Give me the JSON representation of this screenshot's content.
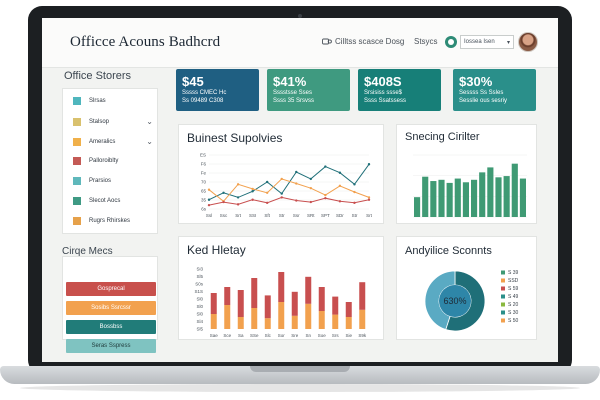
{
  "header": {
    "title": "Officce Acouns Badhcrd",
    "search_label": "Cilltss scasce Dosg",
    "status_label": "Stsycs",
    "dropdown_value": "Iossea Isen"
  },
  "sidebar": {
    "title": "Office Storers",
    "items": [
      {
        "label": "Slrsas",
        "color": "#4fb6bd",
        "chevron": false
      },
      {
        "label": "Stalsop",
        "color": "#d9c16e",
        "chevron": true
      },
      {
        "label": "Ameralics",
        "color": "#f0b04a",
        "chevron": true
      },
      {
        "label": "Palloroiblty",
        "color": "#c45a55",
        "chevron": false
      },
      {
        "label": "Prarsios",
        "color": "#5fb8bb",
        "chevron": false
      },
      {
        "label": "Slecot Aocs",
        "color": "#3f9a84",
        "chevron": false
      },
      {
        "label": "Rugrs Rhirskes",
        "color": "#e6a14a",
        "chevron": false
      }
    ]
  },
  "group": {
    "title": "Cirqe Mecs",
    "buttons": [
      {
        "label": "Gosprecal",
        "bg": "#c8504c",
        "fg": "#ffffff"
      },
      {
        "label": "Sosibs Ssrcssr",
        "bg": "#f2a14e",
        "fg": "#ffffff"
      },
      {
        "label": "Bossbss",
        "bg": "#217c79",
        "fg": "#ffffff"
      },
      {
        "label": "Seras Sspress",
        "bg": "#7fc3c1",
        "fg": "#1f3a3a"
      }
    ]
  },
  "kpis": [
    {
      "value": "$45",
      "sub1": "Sssss CMEC Hc",
      "sub2": "Ss 09489 C308",
      "color": "#1f5f82"
    },
    {
      "value": "$41%",
      "sub1": "Sssstsse Sses",
      "sub2": "Ssss 35 Srsvss",
      "color": "#3f9a80"
    },
    {
      "value": "$408S",
      "sub1": "Srsisiss ssse$",
      "sub2": "Ssss Ssatssess",
      "color": "#177f78"
    },
    {
      "value": "$30%",
      "sub1": "Sessss Ss Ssles",
      "sub2": "Sesslie ous sesriy",
      "color": "#2a8f8a"
    }
  ],
  "panels": {
    "supply_title": "Buinest Supolvies",
    "spending_title": "Snecing Cirilter",
    "history_title": "Ked Hletay",
    "analytics_title": "Andyilice Sconnts"
  },
  "colors": {
    "teal_dark": "#1f6f78",
    "teal_mid": "#2f8c82",
    "orange": "#f2a14e",
    "red": "#c84f4f",
    "green": "#3f9a74"
  },
  "chart_data": [
    {
      "type": "line",
      "title": "Buinest Supolvies",
      "x": [
        "Ssl",
        "Ssc",
        "Srt",
        "SSI",
        "Sft",
        "Str",
        "Ssr",
        "SRt",
        "SPT",
        "SDr",
        "Str",
        "Srt"
      ],
      "y_ticks": [
        "ES",
        "F6",
        "Fe",
        "70",
        "65",
        "35",
        "6s"
      ],
      "ylim": [
        0,
        7
      ],
      "series": [
        {
          "name": "",
          "color": "#1f6f78",
          "values": [
            1.2,
            2.1,
            1.5,
            2.3,
            3.5,
            2.0,
            4.8,
            3.9,
            5.5,
            4.7,
            3.2,
            5.8
          ]
        },
        {
          "name": "",
          "color": "#f2a14e",
          "values": [
            2.5,
            1.0,
            3.2,
            2.6,
            2.1,
            3.9,
            3.3,
            2.7,
            1.8,
            3.0,
            2.2,
            1.5
          ]
        },
        {
          "name": "",
          "color": "#c84f4f",
          "values": [
            0.5,
            0.9,
            0.6,
            1.2,
            0.8,
            1.5,
            1.1,
            0.9,
            1.4,
            1.0,
            0.8,
            1.2
          ]
        }
      ]
    },
    {
      "type": "bar",
      "title": "Snecing Cirilter",
      "color": "#3f9a74",
      "values": [
        3.2,
        6.5,
        5.8,
        6.0,
        5.5,
        6.2,
        5.6,
        6.0,
        7.2,
        8.0,
        6.4,
        6.6,
        8.6,
        6.2
      ],
      "ylim": [
        0,
        10
      ]
    },
    {
      "type": "bar",
      "title": "Ked Hletay",
      "x": [
        "Sae",
        "Sce",
        "Sa",
        "SSe",
        "Slc",
        "Sor",
        "Sre",
        "Sn",
        "Soe",
        "Srs",
        "Sie",
        "S9k"
      ],
      "y_ticks": [
        "Si3",
        "Sl5",
        "S0s",
        "S1S",
        "Sl0",
        "Sl0",
        "Sl0",
        "Sl4",
        "Sl5"
      ],
      "ylim": [
        0,
        10
      ],
      "series": [
        {
          "name": "",
          "color": "#f2a14e",
          "values": [
            2.5,
            4.0,
            2.0,
            3.5,
            1.8,
            4.5,
            2.2,
            4.2,
            3.0,
            2.4,
            2.0,
            3.2
          ]
        },
        {
          "name": "",
          "color": "#c84f4f",
          "values": [
            3.5,
            3.0,
            4.5,
            5.0,
            3.8,
            5.0,
            4.0,
            4.5,
            4.0,
            3.0,
            2.5,
            4.6
          ]
        }
      ]
    },
    {
      "type": "pie",
      "title": "Andyilice Sconnts",
      "center_label": "630%",
      "slices": [
        {
          "label": "",
          "value": 55,
          "color": "#1f6f78"
        },
        {
          "label": "",
          "value": 45,
          "color": "#5aaac3"
        }
      ],
      "legend": [
        {
          "label": "S 39",
          "color": "#3f9a74"
        },
        {
          "label": "SSD",
          "color": "#f2a14e"
        },
        {
          "label": "S 59",
          "color": "#c84f4f"
        },
        {
          "label": "S 49",
          "color": "#2a8f8a"
        },
        {
          "label": "S 20",
          "color": "#8ab93f"
        },
        {
          "label": "S 30",
          "color": "#2a8f8a"
        },
        {
          "label": "S 50",
          "color": "#f2a14e"
        }
      ]
    }
  ]
}
